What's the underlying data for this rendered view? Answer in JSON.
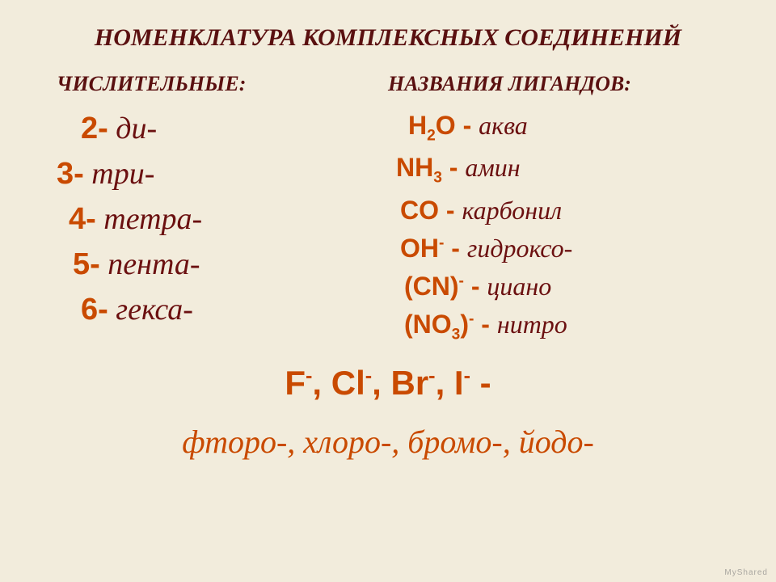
{
  "colors": {
    "background": "#f2ecdc",
    "title": "#5a1010",
    "subheader": "#5a1010",
    "numeral_num": "#c94a00",
    "numeral_word": "#6b1010",
    "ligand_formula": "#c94a00",
    "ligand_name": "#6b1010",
    "halogens": "#c94a00",
    "halogen_names": "#c94a00"
  },
  "fontsizes": {
    "title": 30,
    "subheader": 26,
    "numeral": 38,
    "ligand": 32,
    "halogens": 42,
    "halogen_names": 40
  },
  "title": "НОМЕНКЛАТУРА КОМПЛЕКСНЫХ СОЕДИНЕНИЙ",
  "left": {
    "header": "ЧИСЛИТЕЛЬНЫЕ:",
    "items": [
      {
        "num": "2-",
        "word": " ди-"
      },
      {
        "num": "3-",
        "word": " три-"
      },
      {
        "num": "4-",
        "word": " тетра-"
      },
      {
        "num": "5-",
        "word": " пента-"
      },
      {
        "num": "6-",
        "word": " гекса-"
      }
    ]
  },
  "right": {
    "header": "НАЗВАНИЯ ЛИГАНДОВ:",
    "items": [
      {
        "formula_html": "H<sub>2</sub>O - ",
        "name": "аква"
      },
      {
        "formula_html": "NH<sub>3</sub> - ",
        "name": "амин"
      },
      {
        "formula_html": "CO - ",
        "name": "карбонил"
      },
      {
        "formula_html": "OH<sup>-</sup> - ",
        "name": "гидроксо-"
      },
      {
        "formula_html": "(CN)<sup>-</sup> - ",
        "name": "циано"
      },
      {
        "formula_html": "(NO<sub>3</sub>)<sup>-</sup> - ",
        "name": "нитро"
      }
    ]
  },
  "halogens_formula_html": "F<sup>-</sup>, Cl<sup>-</sup>, Br<sup>-</sup>, I<sup>-</sup> -",
  "halogen_names": "фторо-, хлоро-, бромо-, йодо-",
  "watermark": "MyShared"
}
